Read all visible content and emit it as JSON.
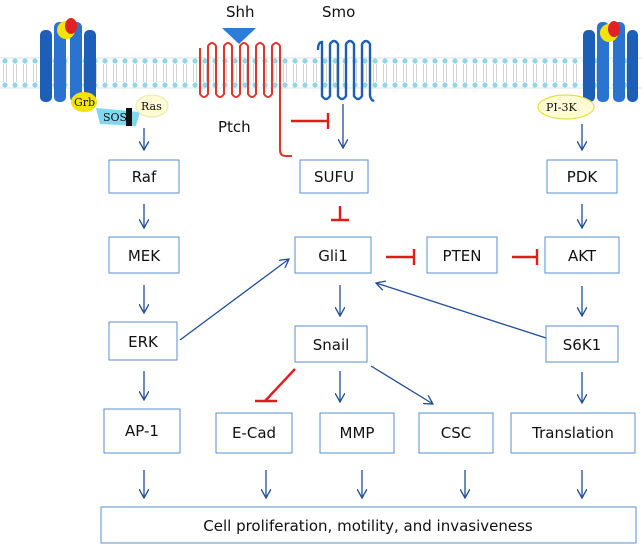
{
  "labels": {
    "shh": "Shh",
    "smo": "Smo",
    "ptch": "Ptch",
    "grb": "Grb",
    "sos": "SOS",
    "ras": "Ras",
    "pi3k": "PI-3K"
  },
  "nodes": {
    "raf": "Raf",
    "mek": "MEK",
    "erk": "ERK",
    "ap1": "AP-1",
    "sufu": "SUFU",
    "gli1": "Gli1",
    "pten": "PTEN",
    "snail": "Snail",
    "ecad": "E-Cad",
    "mmp": "MMP",
    "csc": "CSC",
    "pdk": "PDK",
    "akt": "AKT",
    "s6k1": "S6K1",
    "translation": "Translation"
  },
  "outcome": "Cell proliferation, motility, and invasiveness",
  "colors": {
    "arrow": "#1f4e96",
    "inhibit": "#e21b1b",
    "box_border": "#5b8fd1",
    "receptor": "#1d5fb8",
    "ptch": "#e0352b",
    "smo": "#1d5fb8"
  }
}
